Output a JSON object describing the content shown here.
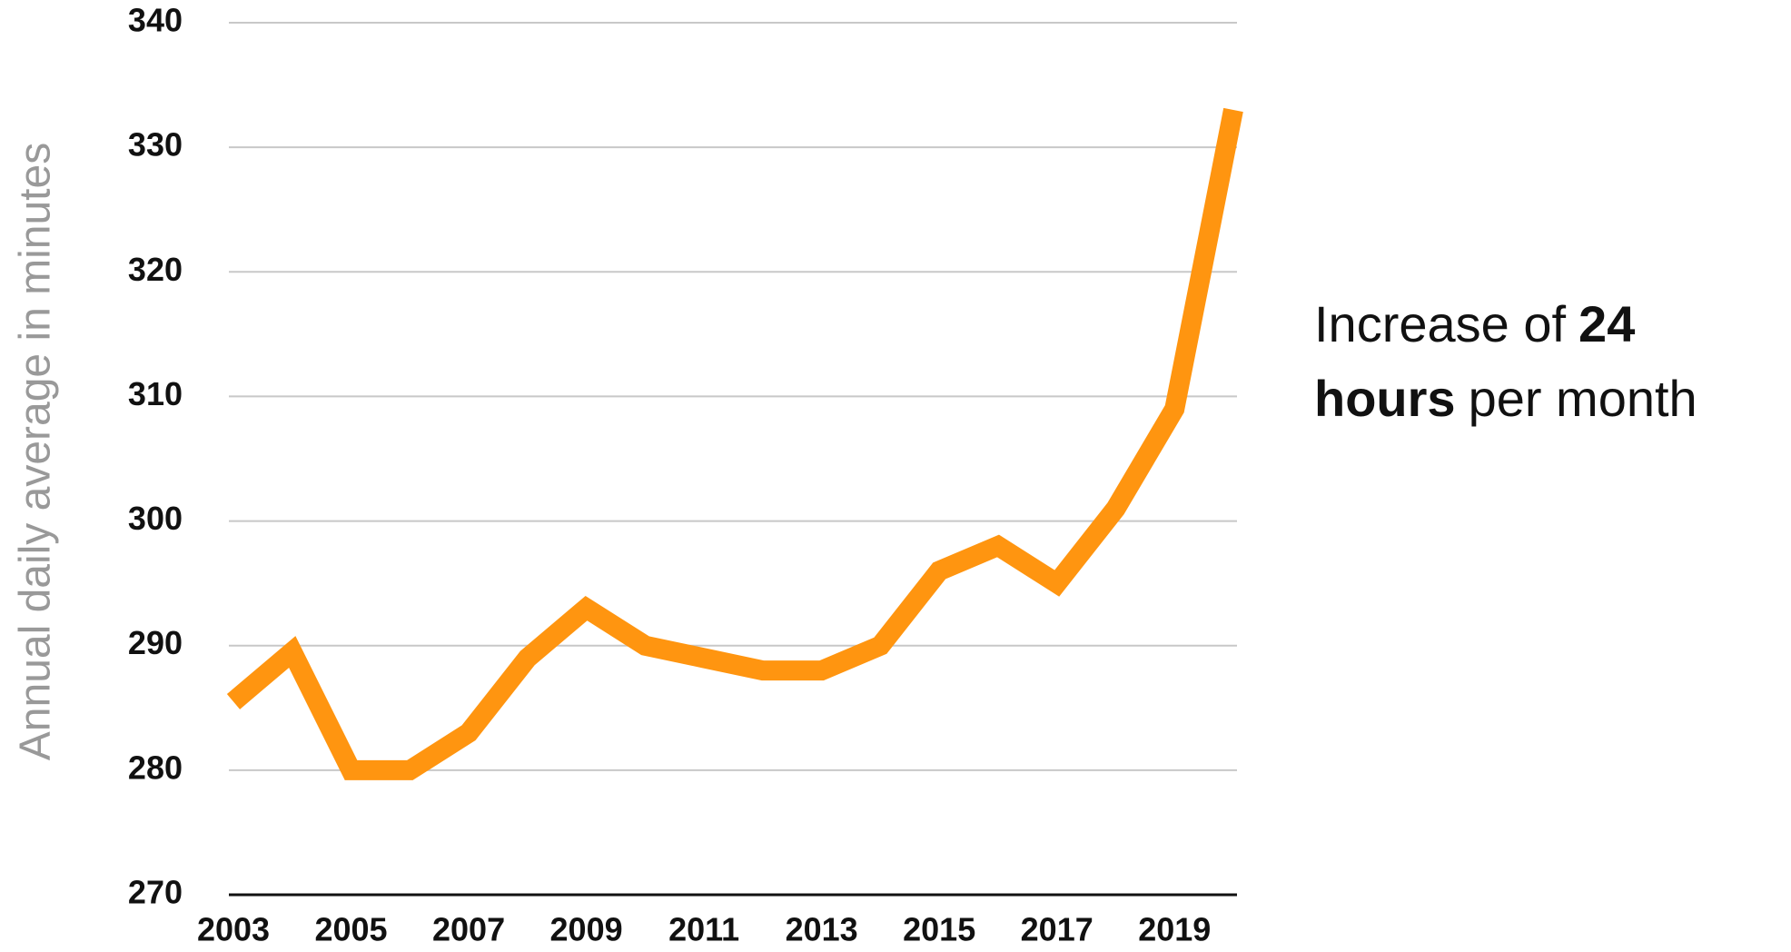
{
  "chart_data": {
    "type": "line",
    "y_label": "Annual daily average in minutes",
    "annotation": [
      [
        {
          "text": "Increase of",
          "bold": false
        },
        {
          "text": "24",
          "bold": true
        }
      ],
      [
        {
          "text": "hours",
          "bold": true
        },
        {
          "text": "per month",
          "bold": false
        }
      ]
    ],
    "x": [
      2003,
      2004,
      2005,
      2006,
      2007,
      2008,
      2009,
      2010,
      2011,
      2012,
      2013,
      2014,
      2015,
      2016,
      2017,
      2018,
      2019,
      2020
    ],
    "series": [
      {
        "name": "Annual daily average",
        "color": "#ff9510",
        "values": [
          285.5,
          289.5,
          280,
          280,
          283,
          289,
          293,
          290,
          289,
          288,
          288,
          290,
          296,
          298,
          295,
          301,
          309,
          333
        ]
      }
    ],
    "xlim": [
      2003,
      2020
    ],
    "xticks": [
      2003,
      2005,
      2007,
      2009,
      2011,
      2013,
      2015,
      2017,
      2019
    ],
    "ylim": [
      270,
      340
    ],
    "yticks": [
      270,
      280,
      290,
      300,
      310,
      320,
      330,
      340
    ],
    "grid": true
  }
}
